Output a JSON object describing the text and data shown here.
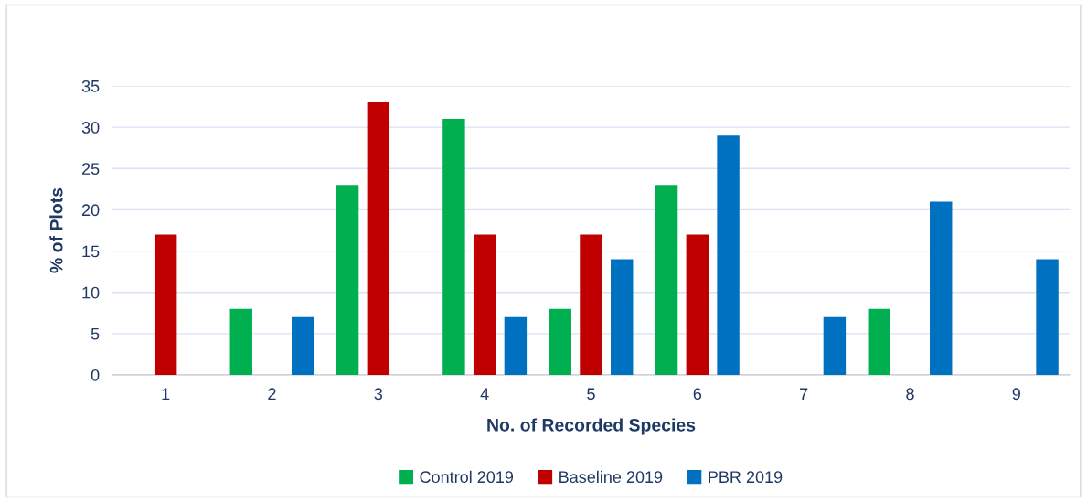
{
  "chart_data": {
    "type": "bar",
    "xlabel": "No. of Recorded Species",
    "ylabel": "% of Plots",
    "categories": [
      "1",
      "2",
      "3",
      "4",
      "5",
      "6",
      "7",
      "8",
      "9"
    ],
    "series": [
      {
        "name": "Control 2019",
        "color": "#00b050",
        "values": [
          null,
          8,
          23,
          31,
          8,
          23,
          null,
          8,
          null
        ]
      },
      {
        "name": "Baseline 2019",
        "color": "#c00000",
        "values": [
          17,
          null,
          33,
          17,
          17,
          17,
          null,
          null,
          null
        ]
      },
      {
        "name": "PBR 2019",
        "color": "#0070c0",
        "values": [
          null,
          7,
          null,
          7,
          14,
          29,
          7,
          21,
          14
        ]
      }
    ],
    "ylim": [
      0,
      35
    ],
    "yticks": [
      0,
      5,
      10,
      15,
      20,
      25,
      30,
      35
    ],
    "grid": "y",
    "legend": "bottom"
  }
}
